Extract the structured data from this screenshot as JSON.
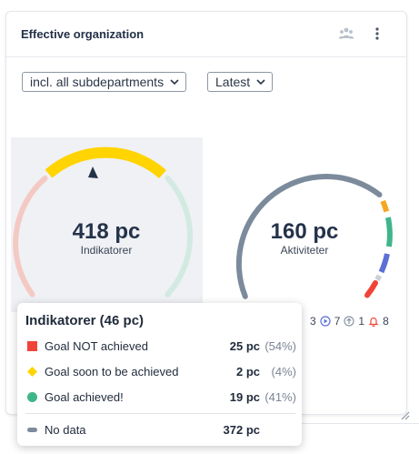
{
  "card": {
    "title": "Effective organization",
    "people_icon": "people-icon",
    "menu_icon": "kebab-menu-icon"
  },
  "filters": {
    "department": "incl. all subdepartments",
    "period": "Latest"
  },
  "gauges": {
    "indicators": {
      "value": "418 pc",
      "label": "Indikatorer"
    },
    "activities": {
      "value": "160 pc",
      "label": "Aktiviteter"
    }
  },
  "activity_stats": {
    "first": "3",
    "running": "7",
    "up": "1",
    "alert": "8"
  },
  "tooltip": {
    "title": "Indikatorer (46 pc)",
    "rows": [
      {
        "label": "Goal NOT achieved",
        "count": "25 pc",
        "pct": "(54%)"
      },
      {
        "label": "Goal soon to be achieved",
        "count": "2 pc",
        "pct": "(4%)"
      },
      {
        "label": "Goal achieved!",
        "count": "19 pc",
        "pct": "(41%)"
      },
      {
        "label": "No data",
        "count": "372 pc",
        "pct": ""
      }
    ]
  },
  "colors": {
    "red": "#f04438",
    "yellow": "#ffd400",
    "green": "#3fb58a",
    "grey": "#7c8b9c",
    "orange": "#f5a623",
    "blue": "#5b6fd6"
  }
}
